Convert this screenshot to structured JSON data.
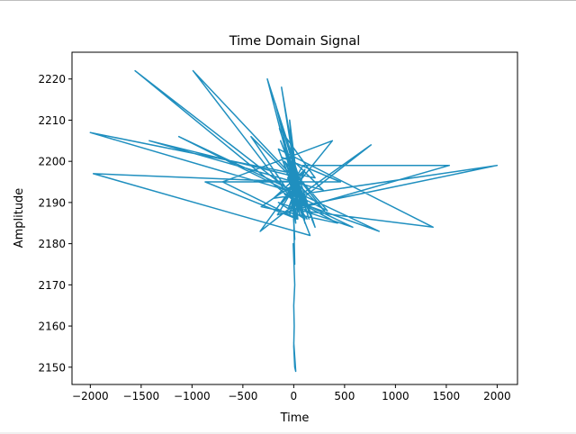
{
  "chart_data": {
    "type": "line",
    "title": "Time Domain Signal",
    "xlabel": "Time",
    "ylabel": "Amplitude",
    "xlim": [
      -2180,
      2200
    ],
    "ylim": [
      2145.8,
      2226.5
    ],
    "xticks": [
      -2000,
      -1500,
      -1000,
      -500,
      0,
      500,
      1000,
      1500,
      2000
    ],
    "yticks": [
      2150,
      2160,
      2170,
      2180,
      2190,
      2200,
      2210,
      2220
    ],
    "grid": false,
    "series": [
      {
        "color": "#1f8fbf",
        "x": [
          0,
          -40,
          60,
          -120,
          110,
          -20,
          40,
          -180,
          150,
          -70,
          80,
          -10,
          20,
          -260,
          210,
          -130,
          120,
          -30,
          60,
          -1560,
          170,
          -50,
          40,
          -990,
          130,
          -420,
          300,
          -90,
          70,
          -2000,
          210,
          -140,
          90,
          -30,
          40,
          -700,
          380,
          -110,
          90,
          1530,
          -160,
          60,
          -1420,
          290,
          -80,
          50,
          2000,
          -200,
          110,
          -40,
          30,
          -1970,
          160,
          -60,
          80,
          1370,
          -150,
          50,
          840,
          -1130,
          330,
          -90,
          70,
          -40,
          30,
          -870,
          460,
          -120,
          100,
          -30,
          20,
          760,
          -330,
          110,
          -60,
          40,
          -320,
          430,
          -90,
          580,
          -150,
          110,
          -40,
          60,
          -20,
          20,
          -10,
          10,
          0,
          10,
          -5,
          10,
          0,
          5,
          0,
          10,
          20,
          0
        ],
        "y": [
          2195,
          2210,
          2190,
          2218,
          2185,
          2200,
          2192,
          2214,
          2186,
          2203,
          2188,
          2198,
          2193,
          2220,
          2184,
          2205,
          2189,
          2197,
          2191,
          2222,
          2187,
          2201,
          2195,
          2222,
          2186,
          2206,
          2188,
          2200,
          2192,
          2207,
          2196,
          2208,
          2190,
          2204,
          2186,
          2195,
          2205,
          2190,
          2199,
          2199,
          2187,
          2196,
          2205,
          2193,
          2202,
          2189,
          2199,
          2191,
          2198,
          2187,
          2195,
          2197,
          2182,
          2196,
          2188,
          2184,
          2203,
          2190,
          2183,
          2206,
          2188,
          2200,
          2191,
          2197,
          2186,
          2195,
          2195,
          2201,
          2186,
          2196,
          2191,
          2204,
          2183,
          2198,
          2188,
          2195,
          2189,
          2185,
          2192,
          2184,
          2190,
          2186,
          2193,
          2187,
          2195,
          2185,
          2190,
          2181,
          2186,
          2175,
          2180,
          2170,
          2165,
          2160,
          2155,
          2150,
          2149,
          2156
        ]
      }
    ]
  }
}
